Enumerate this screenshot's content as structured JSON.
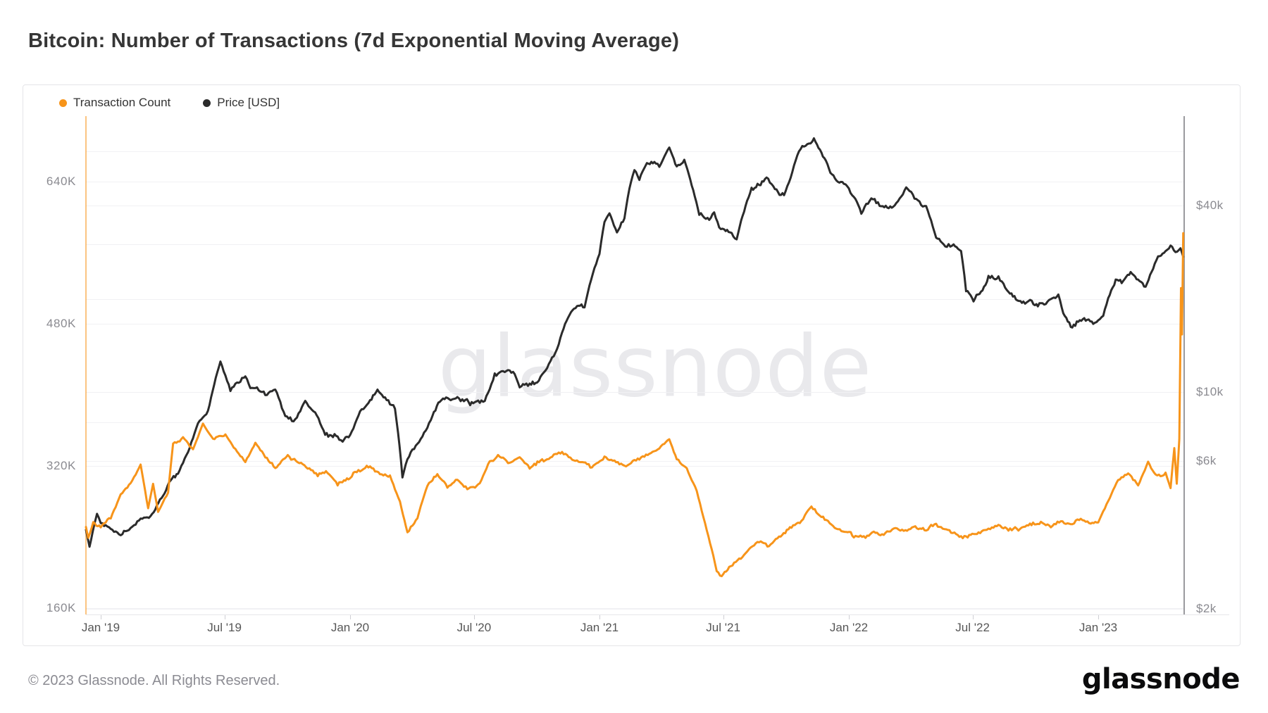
{
  "page": {
    "title": "Bitcoin: Number of Transactions (7d Exponential Moving Average)",
    "watermark": "glassnode",
    "footer_copyright": "© 2023 Glassnode. All Rights Reserved.",
    "footer_logo": "glassnode"
  },
  "legend": {
    "items": [
      {
        "label": "Transaction Count",
        "color": "#f7941a"
      },
      {
        "label": "Price [USD]",
        "color": "#2b2b2b"
      }
    ]
  },
  "chart_data": {
    "type": "line",
    "title": "Bitcoin: Number of Transactions (7d Exponential Moving Average)",
    "grid": "on",
    "legend_position": "top-left",
    "x_axis": {
      "unit": "decimal_year",
      "range": [
        2018.94,
        2023.345
      ],
      "ticks": [
        {
          "t": 2019.0,
          "label": "Jan '19"
        },
        {
          "t": 2019.496,
          "label": "Jul '19"
        },
        {
          "t": 2020.0,
          "label": "Jan '20"
        },
        {
          "t": 2020.497,
          "label": "Jul '20"
        },
        {
          "t": 2021.0,
          "label": "Jan '21"
        },
        {
          "t": 2021.496,
          "label": "Jul '21"
        },
        {
          "t": 2022.0,
          "label": "Jan '22"
        },
        {
          "t": 2022.496,
          "label": "Jul '22"
        },
        {
          "t": 2023.0,
          "label": "Jan '23"
        }
      ]
    },
    "y_left": {
      "series": "Transaction Count",
      "scale": "linear",
      "range": [
        152000,
        721000
      ],
      "ticks": [
        {
          "v": 640000,
          "label": "640K"
        },
        {
          "v": 480000,
          "label": "480K"
        },
        {
          "v": 320000,
          "label": "320K"
        },
        {
          "v": 160000,
          "label": "160K"
        }
      ]
    },
    "y_right": {
      "series": "Price [USD]",
      "scale": "log",
      "range": [
        1900,
        78000
      ],
      "ticks": [
        {
          "v": 40000,
          "label": "$40k"
        },
        {
          "v": 10000,
          "label": "$10k"
        },
        {
          "v": 6000,
          "label": "$6k"
        },
        {
          "v": 2000,
          "label": "$2k"
        }
      ],
      "extra_gridline_values": [
        60000,
        30000,
        20000,
        8000
      ]
    },
    "series": [
      {
        "name": "Price [USD]",
        "axis": "right",
        "color": "#2b2b2b",
        "points": [
          [
            2018.94,
            3600
          ],
          [
            2018.955,
            3150
          ],
          [
            2018.985,
            4050
          ],
          [
            2019.0,
            3750
          ],
          [
            2019.04,
            3580
          ],
          [
            2019.08,
            3440
          ],
          [
            2019.12,
            3620
          ],
          [
            2019.16,
            3870
          ],
          [
            2019.2,
            3960
          ],
          [
            2019.25,
            4600
          ],
          [
            2019.28,
            5250
          ],
          [
            2019.31,
            5500
          ],
          [
            2019.35,
            6350
          ],
          [
            2019.39,
            7900
          ],
          [
            2019.43,
            8650
          ],
          [
            2019.48,
            12600
          ],
          [
            2019.5,
            11300
          ],
          [
            2019.52,
            10100
          ],
          [
            2019.54,
            10600
          ],
          [
            2019.58,
            11200
          ],
          [
            2019.6,
            10300
          ],
          [
            2019.62,
            10400
          ],
          [
            2019.66,
            9900
          ],
          [
            2019.7,
            10150
          ],
          [
            2019.74,
            8350
          ],
          [
            2019.78,
            8150
          ],
          [
            2019.82,
            9250
          ],
          [
            2019.86,
            8550
          ],
          [
            2019.9,
            7350
          ],
          [
            2019.95,
            7150
          ],
          [
            2019.97,
            6900
          ],
          [
            2020.0,
            7200
          ],
          [
            2020.04,
            8650
          ],
          [
            2020.08,
            9350
          ],
          [
            2020.11,
            10050
          ],
          [
            2020.14,
            9650
          ],
          [
            2020.18,
            8800
          ],
          [
            2020.21,
            5300
          ],
          [
            2020.23,
            6100
          ],
          [
            2020.27,
            6800
          ],
          [
            2020.31,
            7600
          ],
          [
            2020.33,
            8400
          ],
          [
            2020.36,
            9300
          ],
          [
            2020.41,
            9550
          ],
          [
            2020.45,
            9350
          ],
          [
            2020.5,
            9150
          ],
          [
            2020.54,
            9300
          ],
          [
            2020.58,
            11300
          ],
          [
            2020.62,
            11700
          ],
          [
            2020.66,
            11400
          ],
          [
            2020.68,
            10400
          ],
          [
            2020.72,
            10600
          ],
          [
            2020.75,
            10800
          ],
          [
            2020.79,
            11900
          ],
          [
            2020.83,
            13800
          ],
          [
            2020.85,
            15500
          ],
          [
            2020.88,
            18000
          ],
          [
            2020.91,
            19000
          ],
          [
            2020.94,
            18700
          ],
          [
            2020.96,
            22000
          ],
          [
            2021.0,
            28000
          ],
          [
            2021.02,
            35500
          ],
          [
            2021.04,
            37500
          ],
          [
            2021.07,
            32500
          ],
          [
            2021.1,
            36500
          ],
          [
            2021.12,
            45500
          ],
          [
            2021.14,
            52000
          ],
          [
            2021.16,
            48500
          ],
          [
            2021.19,
            54500
          ],
          [
            2021.22,
            55500
          ],
          [
            2021.24,
            53500
          ],
          [
            2021.28,
            61500
          ],
          [
            2021.31,
            53000
          ],
          [
            2021.34,
            56500
          ],
          [
            2021.37,
            46500
          ],
          [
            2021.4,
            37500
          ],
          [
            2021.44,
            36000
          ],
          [
            2021.46,
            38000
          ],
          [
            2021.48,
            34000
          ],
          [
            2021.5,
            33800
          ],
          [
            2021.53,
            32500
          ],
          [
            2021.55,
            31000
          ],
          [
            2021.58,
            38500
          ],
          [
            2021.61,
            45500
          ],
          [
            2021.64,
            46500
          ],
          [
            2021.67,
            49500
          ],
          [
            2021.71,
            44500
          ],
          [
            2021.74,
            43500
          ],
          [
            2021.76,
            47500
          ],
          [
            2021.8,
            60000
          ],
          [
            2021.84,
            63500
          ],
          [
            2021.86,
            65500
          ],
          [
            2021.89,
            59500
          ],
          [
            2021.92,
            52500
          ],
          [
            2021.95,
            48500
          ],
          [
            2021.98,
            47500
          ],
          [
            2022.02,
            43000
          ],
          [
            2022.05,
            37500
          ],
          [
            2022.09,
            42500
          ],
          [
            2022.13,
            39500
          ],
          [
            2022.16,
            38800
          ],
          [
            2022.19,
            40500
          ],
          [
            2022.23,
            45500
          ],
          [
            2022.27,
            42000
          ],
          [
            2022.31,
            39500
          ],
          [
            2022.35,
            31500
          ],
          [
            2022.38,
            29800
          ],
          [
            2022.42,
            29900
          ],
          [
            2022.45,
            28500
          ],
          [
            2022.47,
            21500
          ],
          [
            2022.5,
            19800
          ],
          [
            2022.53,
            21000
          ],
          [
            2022.56,
            23200
          ],
          [
            2022.6,
            23500
          ],
          [
            2022.64,
            21000
          ],
          [
            2022.67,
            19900
          ],
          [
            2022.7,
            19500
          ],
          [
            2022.74,
            19300
          ],
          [
            2022.77,
            19200
          ],
          [
            2022.81,
            19900
          ],
          [
            2022.84,
            20600
          ],
          [
            2022.86,
            18000
          ],
          [
            2022.89,
            16400
          ],
          [
            2022.92,
            16800
          ],
          [
            2022.95,
            17100
          ],
          [
            2022.98,
            16700
          ],
          [
            2023.02,
            17500
          ],
          [
            2023.04,
            20000
          ],
          [
            2023.07,
            22900
          ],
          [
            2023.1,
            22700
          ],
          [
            2023.13,
            24200
          ],
          [
            2023.16,
            23300
          ],
          [
            2023.19,
            21800
          ],
          [
            2023.22,
            25000
          ],
          [
            2023.24,
            27400
          ],
          [
            2023.27,
            28300
          ],
          [
            2023.29,
            30000
          ],
          [
            2023.31,
            28000
          ],
          [
            2023.33,
            29200
          ],
          [
            2023.341,
            27300
          ]
        ]
      },
      {
        "name": "Transaction Count",
        "axis": "left",
        "color": "#f7941a",
        "points": [
          [
            2018.94,
            252000
          ],
          [
            2018.95,
            240000
          ],
          [
            2018.97,
            255000
          ],
          [
            2019.0,
            252000
          ],
          [
            2019.04,
            262000
          ],
          [
            2019.08,
            288000
          ],
          [
            2019.12,
            300000
          ],
          [
            2019.16,
            322000
          ],
          [
            2019.19,
            272000
          ],
          [
            2019.21,
            300000
          ],
          [
            2019.23,
            268000
          ],
          [
            2019.27,
            290000
          ],
          [
            2019.29,
            345000
          ],
          [
            2019.33,
            352000
          ],
          [
            2019.37,
            338000
          ],
          [
            2019.41,
            368000
          ],
          [
            2019.45,
            350000
          ],
          [
            2019.5,
            356000
          ],
          [
            2019.54,
            338000
          ],
          [
            2019.58,
            324000
          ],
          [
            2019.62,
            346000
          ],
          [
            2019.66,
            330000
          ],
          [
            2019.7,
            318000
          ],
          [
            2019.75,
            332000
          ],
          [
            2019.79,
            324000
          ],
          [
            2019.83,
            318000
          ],
          [
            2019.87,
            310000
          ],
          [
            2019.91,
            313000
          ],
          [
            2019.95,
            300000
          ],
          [
            2020.0,
            308000
          ],
          [
            2020.04,
            316000
          ],
          [
            2020.08,
            320000
          ],
          [
            2020.12,
            311000
          ],
          [
            2020.16,
            309000
          ],
          [
            2020.2,
            280000
          ],
          [
            2020.23,
            244000
          ],
          [
            2020.27,
            262000
          ],
          [
            2020.31,
            298000
          ],
          [
            2020.35,
            310000
          ],
          [
            2020.39,
            297000
          ],
          [
            2020.43,
            305000
          ],
          [
            2020.47,
            294000
          ],
          [
            2020.52,
            300000
          ],
          [
            2020.56,
            326000
          ],
          [
            2020.6,
            331000
          ],
          [
            2020.64,
            324000
          ],
          [
            2020.68,
            330000
          ],
          [
            2020.72,
            319000
          ],
          [
            2020.77,
            326000
          ],
          [
            2020.81,
            330000
          ],
          [
            2020.85,
            336000
          ],
          [
            2020.89,
            329000
          ],
          [
            2020.93,
            324000
          ],
          [
            2020.97,
            319000
          ],
          [
            2021.02,
            330000
          ],
          [
            2021.06,
            324000
          ],
          [
            2021.1,
            319000
          ],
          [
            2021.14,
            326000
          ],
          [
            2021.18,
            331000
          ],
          [
            2021.22,
            336000
          ],
          [
            2021.28,
            350000
          ],
          [
            2021.31,
            328000
          ],
          [
            2021.35,
            318000
          ],
          [
            2021.39,
            292000
          ],
          [
            2021.43,
            248000
          ],
          [
            2021.47,
            203000
          ],
          [
            2021.49,
            196000
          ],
          [
            2021.52,
            206000
          ],
          [
            2021.56,
            214000
          ],
          [
            2021.6,
            225000
          ],
          [
            2021.64,
            236000
          ],
          [
            2021.68,
            229000
          ],
          [
            2021.72,
            240000
          ],
          [
            2021.77,
            251000
          ],
          [
            2021.81,
            259000
          ],
          [
            2021.85,
            274000
          ],
          [
            2021.89,
            263000
          ],
          [
            2021.93,
            255000
          ],
          [
            2021.97,
            247000
          ],
          [
            2022.02,
            242000
          ],
          [
            2022.06,
            239000
          ],
          [
            2022.1,
            246000
          ],
          [
            2022.14,
            243000
          ],
          [
            2022.18,
            250000
          ],
          [
            2022.22,
            247000
          ],
          [
            2022.26,
            252000
          ],
          [
            2022.31,
            249000
          ],
          [
            2022.35,
            255000
          ],
          [
            2022.39,
            247000
          ],
          [
            2022.43,
            243000
          ],
          [
            2022.47,
            240000
          ],
          [
            2022.52,
            245000
          ],
          [
            2022.56,
            250000
          ],
          [
            2022.6,
            252000
          ],
          [
            2022.64,
            247000
          ],
          [
            2022.68,
            250000
          ],
          [
            2022.72,
            253000
          ],
          [
            2022.77,
            255000
          ],
          [
            2022.81,
            251000
          ],
          [
            2022.85,
            258000
          ],
          [
            2022.89,
            254000
          ],
          [
            2022.93,
            260000
          ],
          [
            2022.97,
            255000
          ],
          [
            2023.0,
            257000
          ],
          [
            2023.04,
            280000
          ],
          [
            2023.08,
            305000
          ],
          [
            2023.12,
            312000
          ],
          [
            2023.16,
            298000
          ],
          [
            2023.2,
            325000
          ],
          [
            2023.23,
            308000
          ],
          [
            2023.27,
            312000
          ],
          [
            2023.29,
            295000
          ],
          [
            2023.305,
            340000
          ],
          [
            2023.315,
            300000
          ],
          [
            2023.325,
            350000
          ],
          [
            2023.332,
            520000
          ],
          [
            2023.336,
            468000
          ],
          [
            2023.341,
            582000
          ]
        ]
      }
    ]
  }
}
